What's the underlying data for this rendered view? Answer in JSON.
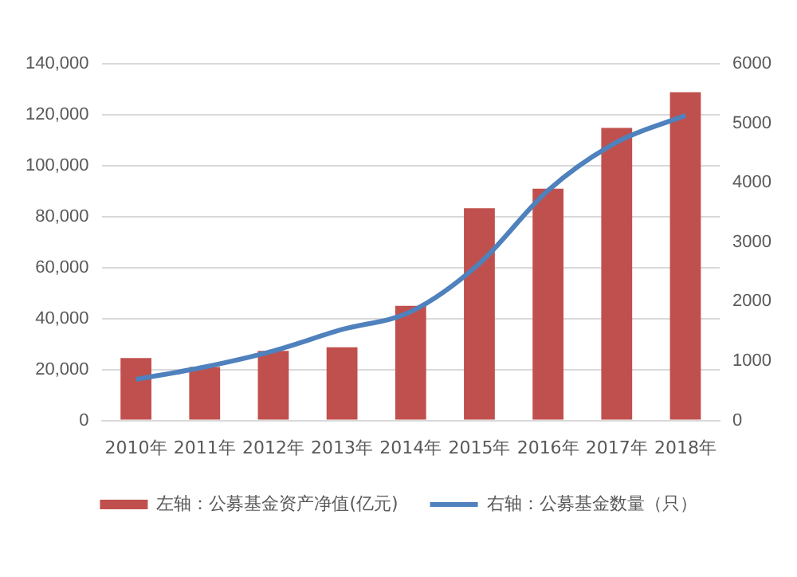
{
  "chart_data": {
    "type": "bar",
    "categories": [
      "2010年",
      "2011年",
      "2012年",
      "2013年",
      "2014年",
      "2015年",
      "2016年",
      "2017年",
      "2018年"
    ],
    "series": [
      {
        "name": "左轴：公募基金资产净值(亿元)",
        "color": "#c0504d",
        "values": [
          24500,
          21000,
          27300,
          28700,
          45000,
          83300,
          91000,
          114800,
          128800
        ]
      },
      {
        "name": "右轴：公募基金数量（只）",
        "type": "line",
        "axis": "y2",
        "color": "#4f81bd",
        "marker": "none",
        "values": [
          690,
          900,
          1170,
          1530,
          1830,
          2640,
          3870,
          4680,
          5130
        ]
      }
    ],
    "ylim": [
      0,
      140000
    ],
    "yticks": [
      0,
      {
        "value": 20000,
        "label": "20,000"
      },
      {
        "value": 40000,
        "label": "40,000"
      },
      {
        "value": 60000,
        "label": "60,000"
      },
      {
        "value": 80000,
        "label": "80,000"
      },
      {
        "value": 100000,
        "label": "100,000"
      },
      {
        "value": 120000,
        "label": "120,000"
      },
      {
        "value": 140000,
        "label": "140,000"
      }
    ],
    "y2lim": [
      0,
      6000
    ],
    "y2ticks": [
      0,
      1000,
      2000,
      3000,
      4000,
      5000,
      6000
    ],
    "grid": "y",
    "legend": "bottom"
  }
}
